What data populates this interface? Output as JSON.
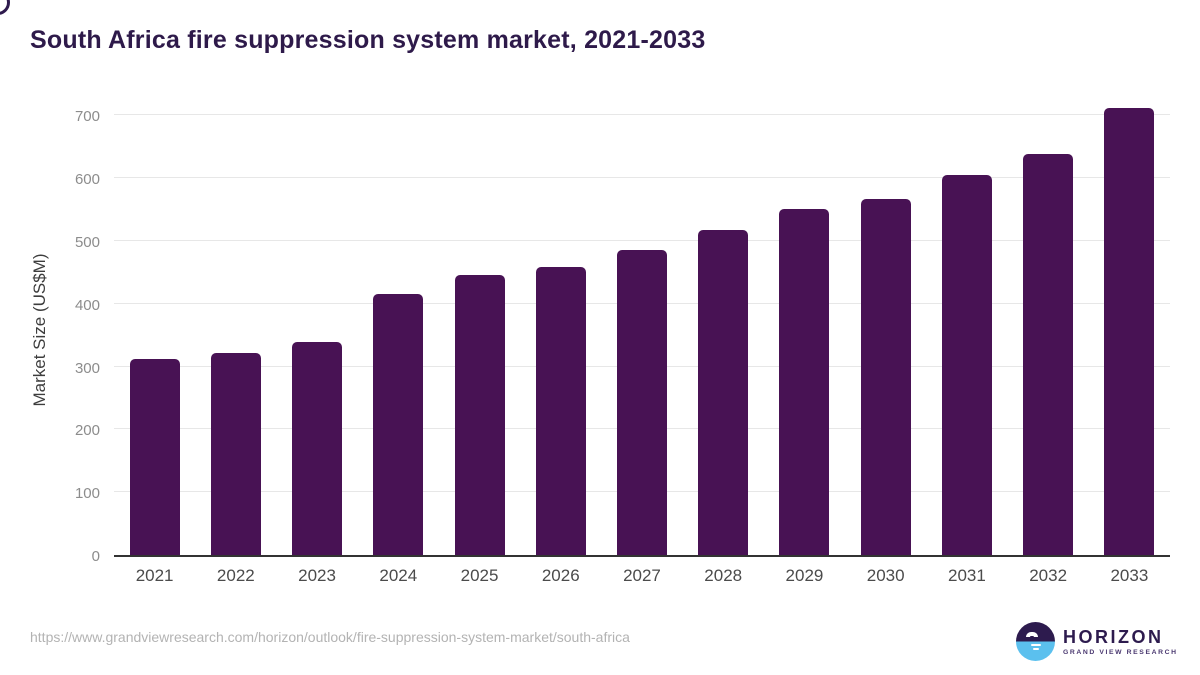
{
  "header": {
    "title": "South Africa fire suppression system market, 2021-2033",
    "title_color": "#2e1a4a"
  },
  "chart_data": {
    "type": "bar",
    "title": "South Africa fire suppression system market, 2021-2033",
    "categories": [
      "2021",
      "2022",
      "2023",
      "2024",
      "2025",
      "2026",
      "2027",
      "2028",
      "2029",
      "2030",
      "2031",
      "2032",
      "2033"
    ],
    "values": [
      312,
      322,
      339,
      415,
      446,
      458,
      485,
      517,
      550,
      567,
      605,
      639,
      712
    ],
    "xlabel": "",
    "ylabel": "Market Size (US$M)",
    "ylim": [
      0,
      721
    ],
    "yticks": [
      0,
      100,
      200,
      300,
      400,
      500,
      600,
      700
    ],
    "grid": true,
    "legend": false,
    "bar_color": "#481254",
    "gridline_color": "#e7e7e7",
    "axis_line_color": "#333333",
    "tick_label_color": "#8c8c8c",
    "category_label_color": "#4b4b4b"
  },
  "footer": {
    "source_url": "https://www.grandviewresearch.com/horizon/outlook/fire-suppression-system-market/south-africa",
    "logo": {
      "brand": "HORIZON",
      "sub_brand": "GRAND VIEW RESEARCH",
      "brand_color": "#2d1b4e",
      "accent_blue": "#5bc0ee"
    }
  }
}
